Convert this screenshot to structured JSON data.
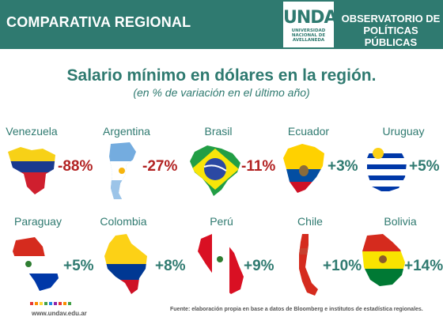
{
  "header": {
    "left_title": "COMPARATIVA REGIONAL",
    "logo_text": "UNDAV",
    "logo_sub": [
      "UNIVERSIDAD",
      "NACIONAL DE",
      "AVELLANEDA"
    ],
    "right_title_line1": "OBSERVATORIO DE",
    "right_title_line2": "POLÍTICAS PÚBLICAS",
    "color": "#2f7a70"
  },
  "title": "Salario mínimo en dólares en la región.",
  "subtitle": "(en % de variación en el último año)",
  "chart_data": {
    "type": "table",
    "title": "Salario mínimo en dólares en la región.",
    "subtitle": "(en % de variación en el último año)",
    "categories": [
      "Venezuela",
      "Argentina",
      "Brasil",
      "Ecuador",
      "Uruguay",
      "Paraguay",
      "Colombia",
      "Perú",
      "Chile",
      "Bolivia"
    ],
    "values": [
      -88,
      -27,
      -11,
      3,
      5,
      5,
      8,
      9,
      10,
      14
    ],
    "labels": [
      "-88%",
      "-27%",
      "-11%",
      "+3%",
      "+5%",
      "+5%",
      "+8%",
      "+9%",
      "+10%",
      "+14%"
    ],
    "negative_color": "#b22222",
    "positive_color": "#2f7a70"
  },
  "footer": {
    "url": "www.undav.edu.ar",
    "source": "Fuente: elaboración propia en base a datos de Bloomberg e institutos de estadística regionales."
  }
}
